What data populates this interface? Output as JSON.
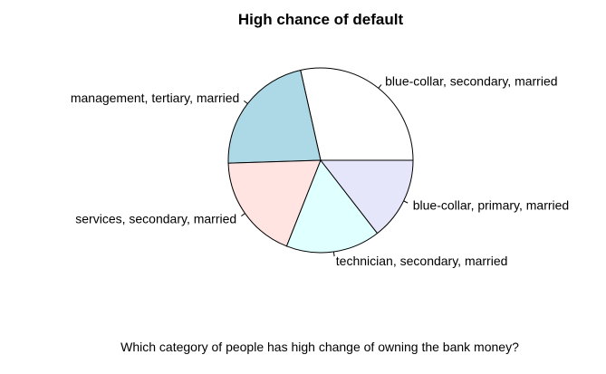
{
  "chart_data": {
    "type": "pie",
    "title": "High chance of default",
    "xlabel": "Which category of people has high change of owning the bank money?",
    "categories": [
      "blue-collar, secondary, married",
      "management, tertiary, married",
      "services, secondary, married",
      "technician, secondary, married",
      "blue-collar, primary, married"
    ],
    "values": [
      28.5,
      22,
      18.5,
      16.5,
      14.5
    ],
    "colors": [
      "#FFFFFF",
      "#ADD8E6",
      "#FFE4E1",
      "#E0FFFF",
      "#E6E6FA"
    ],
    "direction": "counter-clockwise",
    "start_angle_deg": 0
  }
}
